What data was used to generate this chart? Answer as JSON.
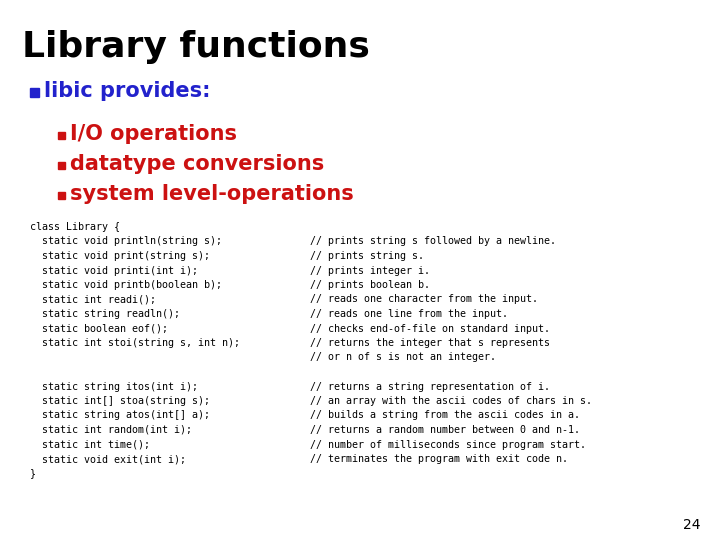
{
  "title": "Library functions",
  "background_color": "#ffffff",
  "title_color": "#000000",
  "title_fontsize": 26,
  "bullet1_color": "#2222cc",
  "bullet1_text": "libic provides:",
  "bullet1_fontsize": 15,
  "bullet2_color": "#cc1111",
  "bullet2_items": [
    "I/O operations",
    "datatype conversions",
    "system level-operations"
  ],
  "bullet2_fontsize": 15,
  "code_fontsize": 7.2,
  "code_color": "#000000",
  "code_lines_left": [
    "class Library {",
    "  static void println(string s);",
    "  static void print(string s);",
    "  static void printi(int i);",
    "  static void printb(boolean b);",
    "  static int readi();",
    "  static string readln();",
    "  static boolean eof();",
    "  static int stoi(string s, int n);",
    "",
    "",
    "  static string itos(int i);",
    "  static int[] stoa(string s);",
    "  static string atos(int[] a);",
    "  static int random(int i);",
    "  static int time();",
    "  static void exit(int i);",
    "}"
  ],
  "code_lines_right": [
    "",
    "// prints string s followed by a newline.",
    "// prints string s.",
    "// prints integer i.",
    "// prints boolean b.",
    "// reads one character from the input.",
    "// reads one line from the input.",
    "// checks end-of-file on standard input.",
    "// returns the integer that s represents",
    "// or n of s is not an integer.",
    "",
    "// returns a string representation of i.",
    "// an array with the ascii codes of chars in s.",
    "// builds a string from the ascii codes in a.",
    "// returns a random number between 0 and n-1.",
    "// number of milliseconds since program start.",
    "// terminates the program with exit code n.",
    ""
  ],
  "page_number": "24",
  "page_number_color": "#000000",
  "page_number_fontsize": 10
}
